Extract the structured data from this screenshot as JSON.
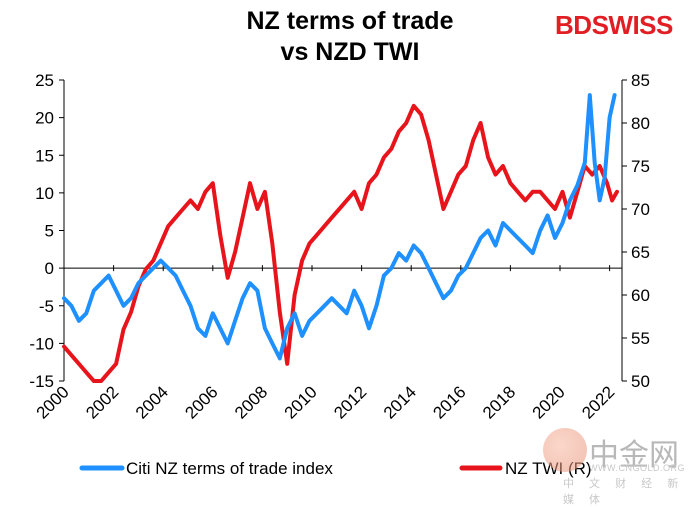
{
  "title_line1": "NZ terms of trade",
  "title_line2": "vs NZD TWI",
  "brand": {
    "part1": "BD",
    "part2": "SWISS"
  },
  "watermark": {
    "chinese": "中金网",
    "url": "WWW.CNGOLD.ORG",
    "sub": "中 文 财 经 新 媒 体"
  },
  "colors": {
    "terms_of_trade": "#1e90ff",
    "twi": "#e8141c"
  },
  "chart_data": {
    "type": "line",
    "title": "NZ terms of trade vs NZD TWI",
    "x_ticks": [
      "2000",
      "2002",
      "2004",
      "2006",
      "2008",
      "2010",
      "2012",
      "2014",
      "2016",
      "2018",
      "2020",
      "2022"
    ],
    "xlim": [
      2000,
      2022.5
    ],
    "y_left": {
      "lim": [
        -15,
        25
      ],
      "ticks": [
        "-15",
        "-10",
        "-5",
        "0",
        "5",
        "10",
        "15",
        "20",
        "25"
      ]
    },
    "y_right": {
      "lim": [
        50,
        85
      ],
      "ticks": [
        "50",
        "55",
        "60",
        "65",
        "70",
        "75",
        "80",
        "85"
      ]
    },
    "legend_position": "bottom",
    "series": [
      {
        "name": "Citi NZ terms of trade index",
        "axis": "left",
        "x": [
          2000.0,
          2000.3,
          2000.6,
          2000.9,
          2001.2,
          2001.5,
          2001.8,
          2002.1,
          2002.4,
          2002.7,
          2003.0,
          2003.3,
          2003.6,
          2003.9,
          2004.2,
          2004.5,
          2004.8,
          2005.1,
          2005.4,
          2005.7,
          2006.0,
          2006.3,
          2006.6,
          2006.9,
          2007.2,
          2007.5,
          2007.8,
          2008.1,
          2008.4,
          2008.7,
          2009.0,
          2009.3,
          2009.6,
          2009.9,
          2010.2,
          2010.5,
          2010.8,
          2011.1,
          2011.4,
          2011.7,
          2012.0,
          2012.3,
          2012.6,
          2012.9,
          2013.2,
          2013.5,
          2013.8,
          2014.1,
          2014.4,
          2014.7,
          2015.0,
          2015.3,
          2015.6,
          2015.9,
          2016.2,
          2016.5,
          2016.8,
          2017.1,
          2017.4,
          2017.7,
          2018.0,
          2018.3,
          2018.6,
          2018.9,
          2019.2,
          2019.5,
          2019.8,
          2020.1,
          2020.4,
          2020.7,
          2021.0,
          2021.2,
          2021.4,
          2021.6,
          2021.8,
          2022.0,
          2022.2
        ],
        "values": [
          -4,
          -5,
          -7,
          -6,
          -3,
          -2,
          -1,
          -3,
          -5,
          -4,
          -2,
          -1,
          0,
          1,
          0,
          -1,
          -3,
          -5,
          -8,
          -9,
          -6,
          -8,
          -10,
          -7,
          -4,
          -2,
          -3,
          -8,
          -10,
          -12,
          -8,
          -6,
          -9,
          -7,
          -6,
          -5,
          -4,
          -5,
          -6,
          -3,
          -5,
          -8,
          -5,
          -1,
          0,
          2,
          1,
          3,
          2,
          0,
          -2,
          -4,
          -3,
          -1,
          0,
          2,
          4,
          5,
          3,
          6,
          5,
          4,
          3,
          2,
          5,
          7,
          4,
          6,
          9,
          11,
          14,
          23,
          14,
          9,
          12,
          20,
          23
        ]
      },
      {
        "name": "NZ TWI (R)",
        "axis": "right",
        "x": [
          2000.0,
          2000.3,
          2000.6,
          2000.9,
          2001.2,
          2001.5,
          2001.8,
          2002.1,
          2002.4,
          2002.7,
          2003.0,
          2003.3,
          2003.6,
          2003.9,
          2004.2,
          2004.5,
          2004.8,
          2005.1,
          2005.4,
          2005.7,
          2006.0,
          2006.3,
          2006.6,
          2006.9,
          2007.2,
          2007.5,
          2007.8,
          2008.1,
          2008.4,
          2008.7,
          2009.0,
          2009.3,
          2009.6,
          2009.9,
          2010.2,
          2010.5,
          2010.8,
          2011.1,
          2011.4,
          2011.7,
          2012.0,
          2012.3,
          2012.6,
          2012.9,
          2013.2,
          2013.5,
          2013.8,
          2014.1,
          2014.4,
          2014.7,
          2015.0,
          2015.3,
          2015.6,
          2015.9,
          2016.2,
          2016.5,
          2016.8,
          2017.1,
          2017.4,
          2017.7,
          2018.0,
          2018.3,
          2018.6,
          2018.9,
          2019.2,
          2019.5,
          2019.8,
          2020.1,
          2020.4,
          2020.7,
          2021.0,
          2021.3,
          2021.6,
          2021.9,
          2022.1,
          2022.3
        ],
        "values": [
          54,
          53,
          52,
          51,
          50,
          50,
          51,
          52,
          56,
          58,
          61,
          63,
          64,
          66,
          68,
          69,
          70,
          71,
          70,
          72,
          73,
          67,
          62,
          65,
          69,
          73,
          70,
          72,
          66,
          58,
          52,
          60,
          64,
          66,
          67,
          68,
          69,
          70,
          71,
          72,
          70,
          73,
          74,
          76,
          77,
          79,
          80,
          82,
          81,
          78,
          74,
          70,
          72,
          74,
          75,
          78,
          80,
          76,
          74,
          75,
          73,
          72,
          71,
          72,
          72,
          71,
          70,
          72,
          69,
          72,
          75,
          74,
          75,
          73,
          71,
          72
        ]
      }
    ]
  }
}
